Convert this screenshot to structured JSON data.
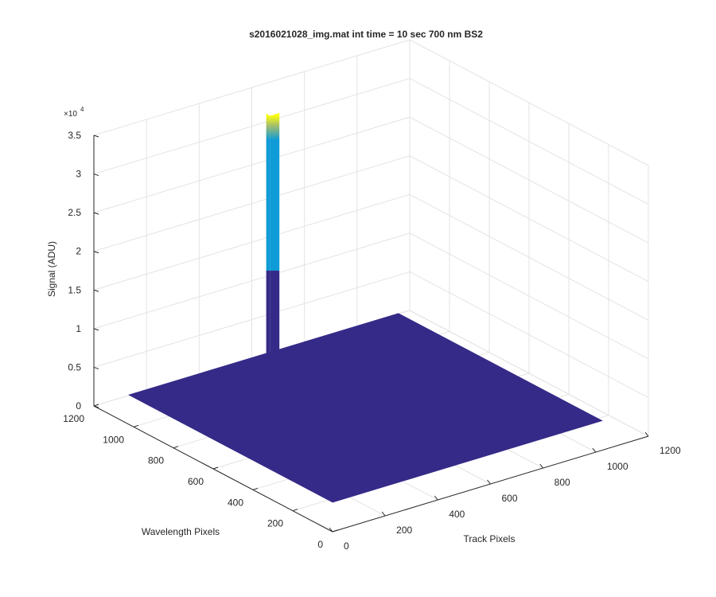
{
  "chart_data": {
    "type": "surface",
    "title": "s2016021028_img.mat int time = 10 sec  700 nm BS2",
    "xlabel": "Track Pixels",
    "ylabel": "Wavelength Pixels",
    "zlabel": "Signal (ADU)",
    "zexponent": {
      "base": "×10",
      "power": "4"
    },
    "xlim": [
      0,
      1200
    ],
    "xticks": [
      0,
      200,
      400,
      600,
      800,
      1000,
      1200
    ],
    "ylim": [
      0,
      1200
    ],
    "yticks": [
      0,
      200,
      400,
      600,
      800,
      1000,
      1200
    ],
    "zlim": [
      0,
      35000
    ],
    "zticks": [
      {
        "value": 0,
        "label": "0"
      },
      {
        "value": 5000,
        "label": "0.5"
      },
      {
        "value": 10000,
        "label": "1"
      },
      {
        "value": 15000,
        "label": "1.5"
      },
      {
        "value": 20000,
        "label": "2"
      },
      {
        "value": 25000,
        "label": "2.5"
      },
      {
        "value": 30000,
        "label": "3"
      },
      {
        "value": 35000,
        "label": "3.5"
      }
    ],
    "grid": true,
    "colormap": [
      "#352a87",
      "#0f9bd7",
      "#a5be6a",
      "#f9fb0e"
    ],
    "surface": {
      "x": [
        1,
        1024
      ],
      "y": [
        1,
        1024
      ],
      "floor": 3800,
      "peak": {
        "x": [
          515,
          550
        ],
        "y": [
          995,
          1015
        ],
        "values": [
          15000,
          35000
        ]
      }
    }
  }
}
